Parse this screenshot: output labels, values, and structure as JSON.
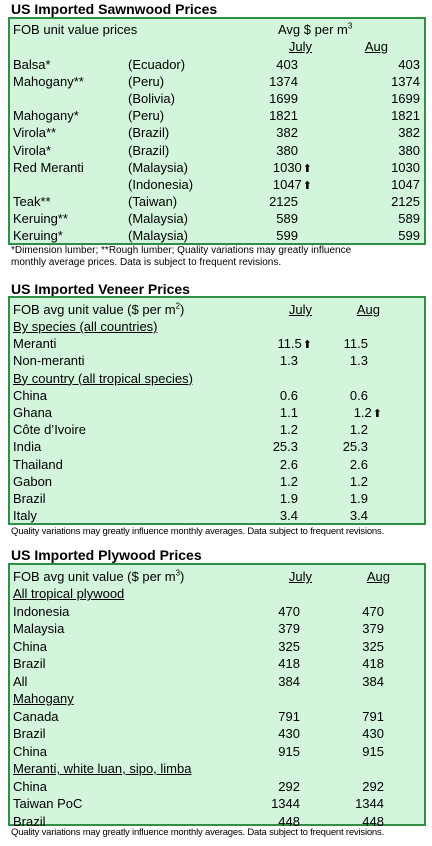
{
  "sawnwood": {
    "title": "US Imported Sawnwood Prices",
    "header_label": "FOB unit value prices",
    "header_avg": "Avg $ per m",
    "header_avg_sup": "3",
    "col1": "July",
    "col2": "Aug",
    "rows": [
      {
        "name": "Balsa*",
        "country": "(Ecuador)",
        "v1": "403",
        "v2": "403"
      },
      {
        "name": "Mahogany**",
        "country": "(Peru)",
        "v1": "1374",
        "v2": "1374"
      },
      {
        "name": "",
        "country": "(Bolivia)",
        "v1": "1699",
        "v2": "1699"
      },
      {
        "name": "Mahogany*",
        "country": "(Peru)",
        "v1": "1821",
        "v2": "1821"
      },
      {
        "name": "Virola**",
        "country": "(Brazil)",
        "v1": "382",
        "v2": "382"
      },
      {
        "name": "Virola*",
        "country": "(Brazil)",
        "v1": "380",
        "v2": "380"
      },
      {
        "name": "Red Meranti",
        "country": "(Malaysia)",
        "v1": "1030",
        "v1_up": "⬆",
        "v2": "1030"
      },
      {
        "name": "",
        "country": "(Indonesia)",
        "v1": "1047",
        "v1_up": "⬆",
        "v2": "1047"
      },
      {
        "name": "Teak**",
        "country": "(Taiwan)",
        "v1": "2125",
        "v2": "2125"
      },
      {
        "name": "Keruing**",
        "country": "(Malaysia)",
        "v1": "589",
        "v2": "589"
      },
      {
        "name": "Keruing*",
        "country": "(Malaysia)",
        "v1": "599",
        "v2": "599"
      }
    ],
    "note_line1": "*Dimension lumber; **Rough lumber; Quality variations may greatly influence",
    "note_line2": "monthly average prices. Data is subject to frequent revisions."
  },
  "veneer": {
    "title": "US Imported Veneer Prices",
    "header_label": "FOB avg unit value ($ per m",
    "header_sup": "2",
    "header_close": ")",
    "col1": "July",
    "col2": "Aug",
    "rows": [
      {
        "type": "sub",
        "name": "By species (all countries)"
      },
      {
        "name": "Meranti",
        "v1": "11.5",
        "v1_up": "⬆",
        "v2": "11.5"
      },
      {
        "name": "Non-meranti",
        "v1": "1.3",
        "v2": "1.3"
      },
      {
        "type": "sub",
        "name": "By country (all tropical species)"
      },
      {
        "name": "China",
        "v1": "0.6",
        "v2": "0.6"
      },
      {
        "name": "Ghana",
        "v1": "1.1",
        "v2": "1.2",
        "v2_up": "⬆"
      },
      {
        "name": "Côte d’Ivoire",
        "v1": "1.2",
        "v2": "1.2"
      },
      {
        "name": "India",
        "v1": "25.3",
        "v2": "25.3"
      },
      {
        "name": "Thailand",
        "v1": "2.6",
        "v2": "2.6"
      },
      {
        "name": "Gabon",
        "v1": "1.2",
        "v2": "1.2"
      },
      {
        "name": "Brazil",
        "v1": "1.9",
        "v2": "1.9"
      },
      {
        "name": "Italy",
        "v1": "3.4",
        "v2": "3.4"
      }
    ],
    "note": "Quality variations may greatly influence monthly averages. Data subject to frequent revisions."
  },
  "plywood": {
    "title": "US Imported Plywood Prices",
    "header_label": "FOB avg unit value ($ per m",
    "header_sup": "3",
    "header_close": ")",
    "col1": "July",
    "col2": "Aug",
    "rows": [
      {
        "type": "sub",
        "name": "All tropical plywood"
      },
      {
        "name": "Indonesia",
        "v1": "470",
        "v2": "470"
      },
      {
        "name": "Malaysia",
        "v1": "379",
        "v2": "379"
      },
      {
        "name": "China",
        "v1": "325",
        "v2": "325"
      },
      {
        "name": "Brazil",
        "v1": "418",
        "v2": "418"
      },
      {
        "name": "All",
        "v1": "384",
        "v2": "384"
      },
      {
        "type": "sub",
        "name": "Mahogany"
      },
      {
        "name": "Canada",
        "v1": "791",
        "v2": "791"
      },
      {
        "name": "Brazil",
        "v1": "430",
        "v2": "430"
      },
      {
        "name": "China",
        "v1": "915",
        "v2": "915"
      },
      {
        "type": "sub",
        "name": "Meranti, white luan, sipo, limba"
      },
      {
        "name": "China",
        "v1": "292",
        "v2": "292"
      },
      {
        "name": "Taiwan PoC",
        "v1": "1344",
        "v2": "1344"
      },
      {
        "name": "Brazil",
        "v1": "448",
        "v2": "448"
      }
    ],
    "note": "Quality variations may greatly influence monthly averages. Data subject to frequent revisions."
  }
}
